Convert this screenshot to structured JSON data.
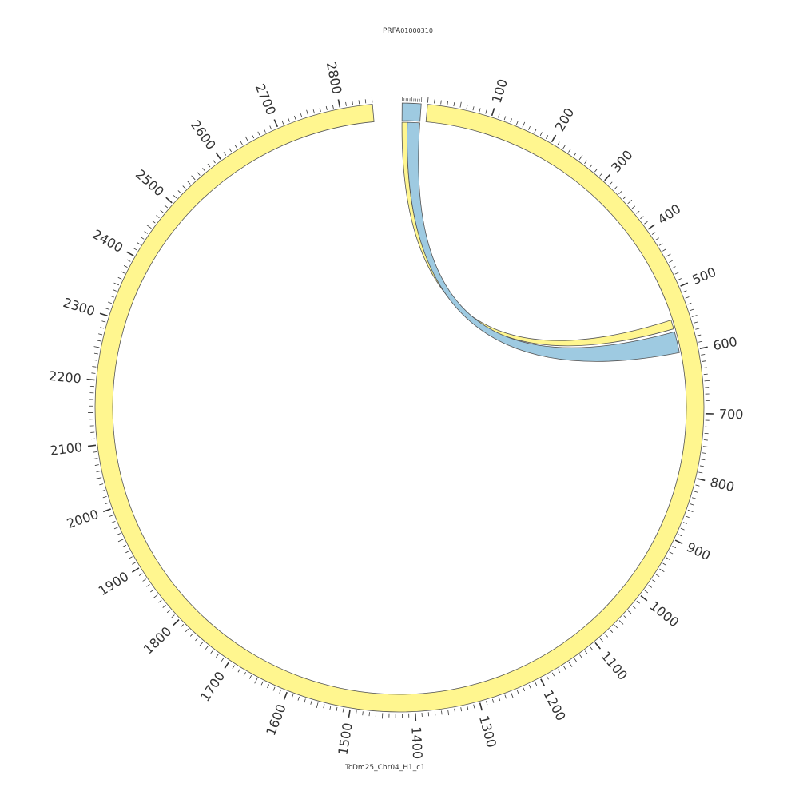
{
  "segments": {
    "main": {
      "name": "TcDm25_Chr04_H1_c1",
      "length": 2850,
      "color": "#fff68f",
      "tick_labels": [
        "100",
        "200",
        "300",
        "400",
        "500",
        "600",
        "700",
        "800",
        "900",
        "1000",
        "1100",
        "1200",
        "1300",
        "1400",
        "1500",
        "1600",
        "1700",
        "1800",
        "1900",
        "2000",
        "2100",
        "2200",
        "2300",
        "2400",
        "2500",
        "2600",
        "2700",
        "2800"
      ],
      "tick_values": [
        100,
        200,
        300,
        400,
        500,
        600,
        700,
        800,
        900,
        1000,
        1100,
        1200,
        1300,
        1400,
        1500,
        1600,
        1700,
        1800,
        1900,
        2000,
        2100,
        2200,
        2300,
        2400,
        2500,
        2600,
        2700,
        2800
      ]
    },
    "small": {
      "name_prefix": "PRFA",
      "name_suffix": "01000310",
      "length": 100,
      "tick_labels": [
        "0",
        "10"
      ],
      "color": "#9ecae1"
    }
  },
  "links": [
    {
      "from": "small",
      "from_range": [
        0,
        30
      ],
      "to": "main",
      "to_range": [
        545,
        560
      ],
      "color": "#fff68f"
    },
    {
      "from": "small",
      "from_range": [
        30,
        100
      ],
      "to": "main",
      "to_range": [
        565,
        600
      ],
      "color": "#9ecae1"
    }
  ],
  "colors": {
    "outline": "#555555",
    "tick": "#333333"
  }
}
